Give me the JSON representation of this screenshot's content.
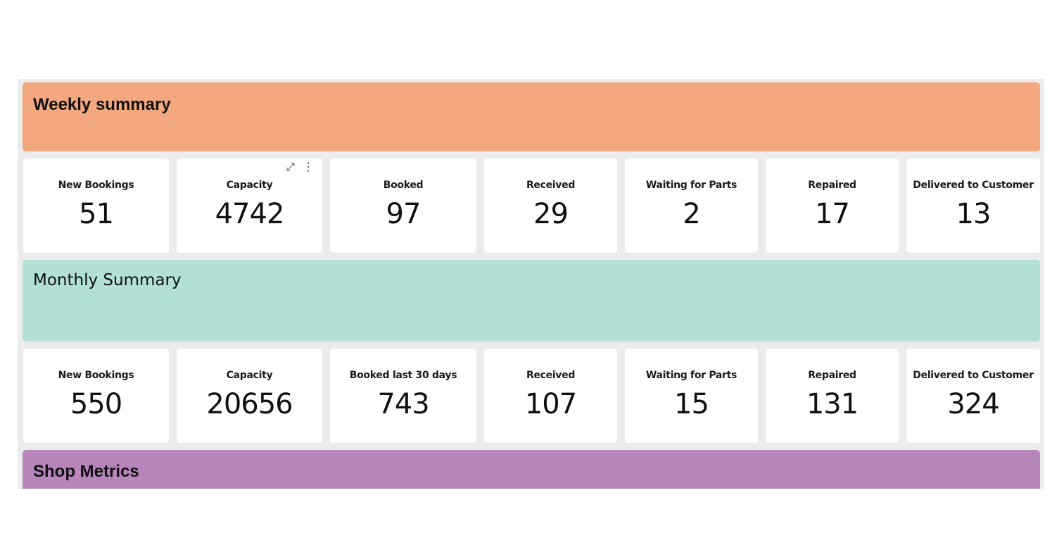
{
  "weekly": {
    "title": "Weekly summary",
    "cards": [
      {
        "label": "New Bookings",
        "value": "51"
      },
      {
        "label": "Capacity",
        "value": "4742"
      },
      {
        "label": "Booked",
        "value": "97"
      },
      {
        "label": "Received",
        "value": "29"
      },
      {
        "label": "Waiting for Parts",
        "value": "2"
      },
      {
        "label": "Repaired",
        "value": "17"
      },
      {
        "label": "Delivered to Customer",
        "value": "13"
      }
    ]
  },
  "monthly": {
    "title": "Monthly Summary",
    "cards": [
      {
        "label": "New Bookings",
        "value": "550"
      },
      {
        "label": "Capacity",
        "value": "20656"
      },
      {
        "label": "Booked last 30 days",
        "value": "743"
      },
      {
        "label": "Received",
        "value": "107"
      },
      {
        "label": "Waiting for Parts",
        "value": "15"
      },
      {
        "label": "Repaired",
        "value": "131"
      },
      {
        "label": "Delivered to Customer",
        "value": "324"
      }
    ]
  },
  "shop": {
    "title": "Shop Metrics"
  },
  "card_tools": {
    "expand_icon": "expand-icon",
    "more_icon": "more-vertical-icon",
    "more_glyph": "⋮"
  },
  "colors": {
    "weekly_banner": "#f3a77f",
    "monthly_banner": "#b2dfd6",
    "shop_banner": "#b784bb",
    "background": "#ececec"
  }
}
